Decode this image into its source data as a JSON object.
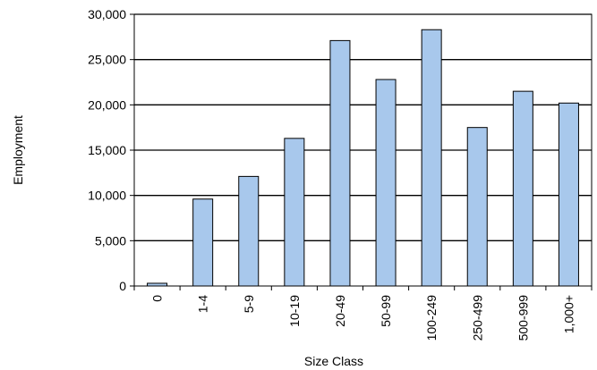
{
  "chart_data": {
    "type": "bar",
    "title": "",
    "xlabel": "Size Class",
    "ylabel": "Employment",
    "categories": [
      "0",
      "1-4",
      "5-9",
      "10-19",
      "20-49",
      "50-99",
      "100-249",
      "250-499",
      "500-999",
      "1,000+"
    ],
    "values": [
      300,
      9600,
      12100,
      16300,
      27100,
      22800,
      28300,
      17500,
      21500,
      20200
    ],
    "ylim": [
      0,
      30000
    ],
    "yticks": [
      0,
      5000,
      10000,
      15000,
      20000,
      25000,
      30000
    ],
    "ytick_labels": [
      "0",
      "5,000",
      "10,000",
      "15,000",
      "20,000",
      "25,000",
      "30,000"
    ],
    "grid": true,
    "legend": "none",
    "bar_color": "#a8c8ec",
    "bar_edge_color": "#000000"
  }
}
